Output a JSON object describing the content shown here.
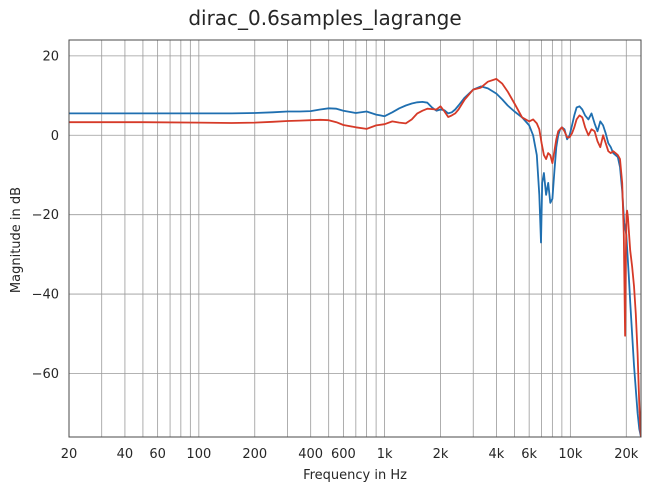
{
  "chart_data": {
    "type": "line",
    "title": "dirac_0.6samples_lagrange",
    "xlabel": "Frequency in Hz",
    "ylabel": "Magnitude in dB",
    "xscale": "log",
    "xlim": [
      20,
      24000
    ],
    "ylim": [
      -76,
      24
    ],
    "grid": true,
    "x_ticks": [
      {
        "value": 20,
        "label": "20"
      },
      {
        "value": 40,
        "label": "40"
      },
      {
        "value": 60,
        "label": "60"
      },
      {
        "value": 100,
        "label": "100"
      },
      {
        "value": 200,
        "label": "200"
      },
      {
        "value": 400,
        "label": "400"
      },
      {
        "value": 600,
        "label": "600"
      },
      {
        "value": 1000,
        "label": "1k"
      },
      {
        "value": 2000,
        "label": "2k"
      },
      {
        "value": 4000,
        "label": "4k"
      },
      {
        "value": 6000,
        "label": "6k"
      },
      {
        "value": 10000,
        "label": "10k"
      },
      {
        "value": 20000,
        "label": "20k"
      }
    ],
    "y_ticks": [
      {
        "value": 20,
        "label": "20"
      },
      {
        "value": 0,
        "label": "0"
      },
      {
        "value": -20,
        "label": "−20"
      },
      {
        "value": -40,
        "label": "−40"
      },
      {
        "value": -60,
        "label": "−60"
      }
    ],
    "series": [
      {
        "color": "#1f6fb0",
        "x": [
          20,
          50,
          100,
          150,
          200,
          250,
          300,
          350,
          400,
          450,
          500,
          550,
          600,
          700,
          800,
          900,
          1000,
          1100,
          1200,
          1300,
          1400,
          1500,
          1600,
          1700,
          1800,
          1900,
          2000,
          2100,
          2200,
          2300,
          2400,
          2500,
          2700,
          3000,
          3300,
          3600,
          4000,
          4300,
          4600,
          5000,
          5500,
          6000,
          6300,
          6600,
          6800,
          6950,
          7050,
          7200,
          7400,
          7600,
          7800,
          8000,
          8200,
          8400,
          8600,
          8800,
          9000,
          9300,
          9600,
          9900,
          10200,
          10500,
          10800,
          11200,
          11600,
          12000,
          12500,
          13000,
          13500,
          14000,
          14500,
          15000,
          15500,
          16000,
          16500,
          17000,
          17500,
          18000,
          18500,
          19000,
          19500,
          20000,
          20300,
          20600,
          21000,
          21500,
          22000,
          22500,
          23000,
          23500,
          24000
        ],
        "y": [
          5.5,
          5.5,
          5.5,
          5.5,
          5.6,
          5.8,
          6.0,
          6.0,
          6.1,
          6.5,
          6.8,
          6.7,
          6.2,
          5.6,
          6.0,
          5.2,
          4.8,
          5.8,
          6.8,
          7.5,
          8.0,
          8.3,
          8.4,
          8.2,
          7.0,
          6.2,
          6.5,
          6.3,
          5.5,
          5.8,
          6.5,
          7.5,
          9.5,
          11.5,
          12.3,
          11.8,
          10.5,
          9.0,
          7.5,
          6.0,
          4.5,
          2.5,
          0.0,
          -5.0,
          -15.0,
          -27.0,
          -12.0,
          -9.5,
          -15.0,
          -12.0,
          -17.0,
          -16.0,
          -9.0,
          -3.0,
          0.0,
          1.5,
          2.0,
          1.5,
          -1.0,
          0.0,
          2.5,
          5.0,
          7.0,
          7.3,
          6.5,
          5.0,
          4.0,
          5.5,
          3.0,
          1.0,
          3.5,
          2.5,
          0.5,
          -2.0,
          -3.0,
          -4.5,
          -5.0,
          -5.5,
          -8.0,
          -14.0,
          -22.0,
          -25.0,
          -30.0,
          -35.0,
          -42.0,
          -50.0,
          -58.0,
          -64.0,
          -70.0,
          -74.0,
          -76.0
        ]
      },
      {
        "color": "#d63a28",
        "x": [
          20,
          50,
          100,
          150,
          200,
          250,
          300,
          350,
          400,
          450,
          500,
          550,
          600,
          700,
          800,
          900,
          1000,
          1100,
          1200,
          1300,
          1400,
          1500,
          1600,
          1700,
          1800,
          1900,
          2000,
          2100,
          2200,
          2300,
          2400,
          2500,
          2700,
          3000,
          3300,
          3600,
          4000,
          4300,
          4600,
          5000,
          5500,
          6000,
          6300,
          6600,
          6800,
          7000,
          7200,
          7400,
          7600,
          7800,
          8000,
          8200,
          8400,
          8600,
          8800,
          9000,
          9300,
          9600,
          9900,
          10200,
          10500,
          10800,
          11200,
          11600,
          12000,
          12500,
          13000,
          13500,
          14000,
          14500,
          15000,
          15500,
          16000,
          16500,
          17000,
          17500,
          18000,
          18500,
          19000,
          19400,
          19700,
          19900,
          20050,
          20200,
          20400,
          20700,
          21000,
          21500,
          22000,
          22500,
          23000,
          23500,
          23800,
          24000
        ],
        "y": [
          3.3,
          3.3,
          3.2,
          3.1,
          3.2,
          3.4,
          3.6,
          3.7,
          3.8,
          3.9,
          3.8,
          3.3,
          2.6,
          2.0,
          1.6,
          2.5,
          2.8,
          3.5,
          3.2,
          3.0,
          4.0,
          5.5,
          6.2,
          6.7,
          6.6,
          6.5,
          7.3,
          6.0,
          4.6,
          5.0,
          5.5,
          6.5,
          9.0,
          11.5,
          12.0,
          13.5,
          14.2,
          13.0,
          11.0,
          8.0,
          4.5,
          3.5,
          4.0,
          3.0,
          1.5,
          -2.0,
          -5.0,
          -6.0,
          -4.5,
          -5.0,
          -7.0,
          -4.0,
          -1.0,
          1.0,
          1.5,
          2.0,
          1.0,
          -0.5,
          -0.5,
          0.5,
          2.0,
          4.0,
          5.0,
          4.5,
          2.0,
          0.0,
          1.5,
          1.0,
          -1.5,
          -3.0,
          0.0,
          -2.0,
          -4.0,
          -4.5,
          -4.0,
          -4.5,
          -5.0,
          -6.0,
          -12.0,
          -25.0,
          -50.5,
          -30.0,
          -20.0,
          -19.0,
          -20.5,
          -25.0,
          -29.0,
          -33.0,
          -38.0,
          -45.0,
          -55.0,
          -68.0,
          -74.0,
          -76.0
        ]
      }
    ]
  }
}
